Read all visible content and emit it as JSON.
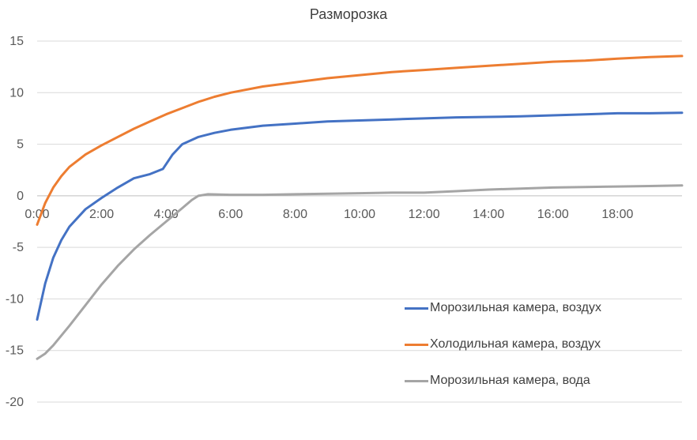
{
  "chart_data": {
    "type": "line",
    "title": "Разморозка",
    "xlabel": "",
    "ylabel": "",
    "x_ticks": [
      "0:00",
      "2:00",
      "4:00",
      "6:00",
      "8:00",
      "10:00",
      "12:00",
      "14:00",
      "16:00",
      "18:00"
    ],
    "y_ticks": [
      "15",
      "10",
      "5",
      "0",
      "-5",
      "-10",
      "-15",
      "-20"
    ],
    "xlim_hours": [
      0,
      20
    ],
    "ylim": [
      -20,
      15
    ],
    "grid": "horizontal",
    "legend_position": "lower-right",
    "series": [
      {
        "name": "Морозильная камера, воздух",
        "color": "#4472C4",
        "x_hours": [
          0,
          0.25,
          0.5,
          0.75,
          1.0,
          1.5,
          2.0,
          2.5,
          3.0,
          3.5,
          3.9,
          4.2,
          4.5,
          5.0,
          5.5,
          6.0,
          7.0,
          8.0,
          9.0,
          10.0,
          11.0,
          12.0,
          13.0,
          14.0,
          15.0,
          16.0,
          17.0,
          18.0,
          19.0,
          20.0
        ],
        "values": [
          -12,
          -8.5,
          -6,
          -4.3,
          -3,
          -1.3,
          -0.2,
          0.8,
          1.7,
          2.1,
          2.6,
          4.0,
          5.0,
          5.7,
          6.1,
          6.4,
          6.8,
          7.0,
          7.2,
          7.3,
          7.4,
          7.5,
          7.6,
          7.65,
          7.7,
          7.8,
          7.9,
          8.0,
          8.0,
          8.05
        ]
      },
      {
        "name": "Холодильная камера, воздух",
        "color": "#ED7D31",
        "x_hours": [
          0,
          0.25,
          0.5,
          0.75,
          1.0,
          1.5,
          2.0,
          2.5,
          3.0,
          3.5,
          4.0,
          4.5,
          5.0,
          5.5,
          6.0,
          7.0,
          8.0,
          9.0,
          10.0,
          11.0,
          12.0,
          13.0,
          14.0,
          15.0,
          16.0,
          17.0,
          18.0,
          19.0,
          20.0
        ],
        "values": [
          -2.8,
          -0.7,
          0.8,
          1.9,
          2.8,
          4.0,
          4.9,
          5.7,
          6.5,
          7.2,
          7.9,
          8.5,
          9.1,
          9.6,
          10.0,
          10.6,
          11.0,
          11.4,
          11.7,
          12.0,
          12.2,
          12.4,
          12.6,
          12.8,
          13.0,
          13.1,
          13.3,
          13.45,
          13.55
        ]
      },
      {
        "name": "Морозильная камера, вода",
        "color": "#A5A5A5",
        "x_hours": [
          0,
          0.25,
          0.5,
          1.0,
          1.5,
          2.0,
          2.5,
          3.0,
          3.5,
          4.0,
          4.5,
          4.8,
          5.0,
          5.3,
          6.0,
          7.0,
          8.0,
          9.0,
          10.0,
          11.0,
          12.0,
          13.0,
          14.0,
          15.0,
          16.0,
          17.0,
          18.0,
          19.0,
          20.0
        ],
        "values": [
          -15.8,
          -15.3,
          -14.5,
          -12.6,
          -10.6,
          -8.6,
          -6.8,
          -5.2,
          -3.8,
          -2.5,
          -1.2,
          -0.4,
          0.0,
          0.15,
          0.1,
          0.1,
          0.15,
          0.2,
          0.25,
          0.3,
          0.3,
          0.45,
          0.6,
          0.7,
          0.8,
          0.85,
          0.9,
          0.95,
          1.0
        ]
      }
    ]
  }
}
